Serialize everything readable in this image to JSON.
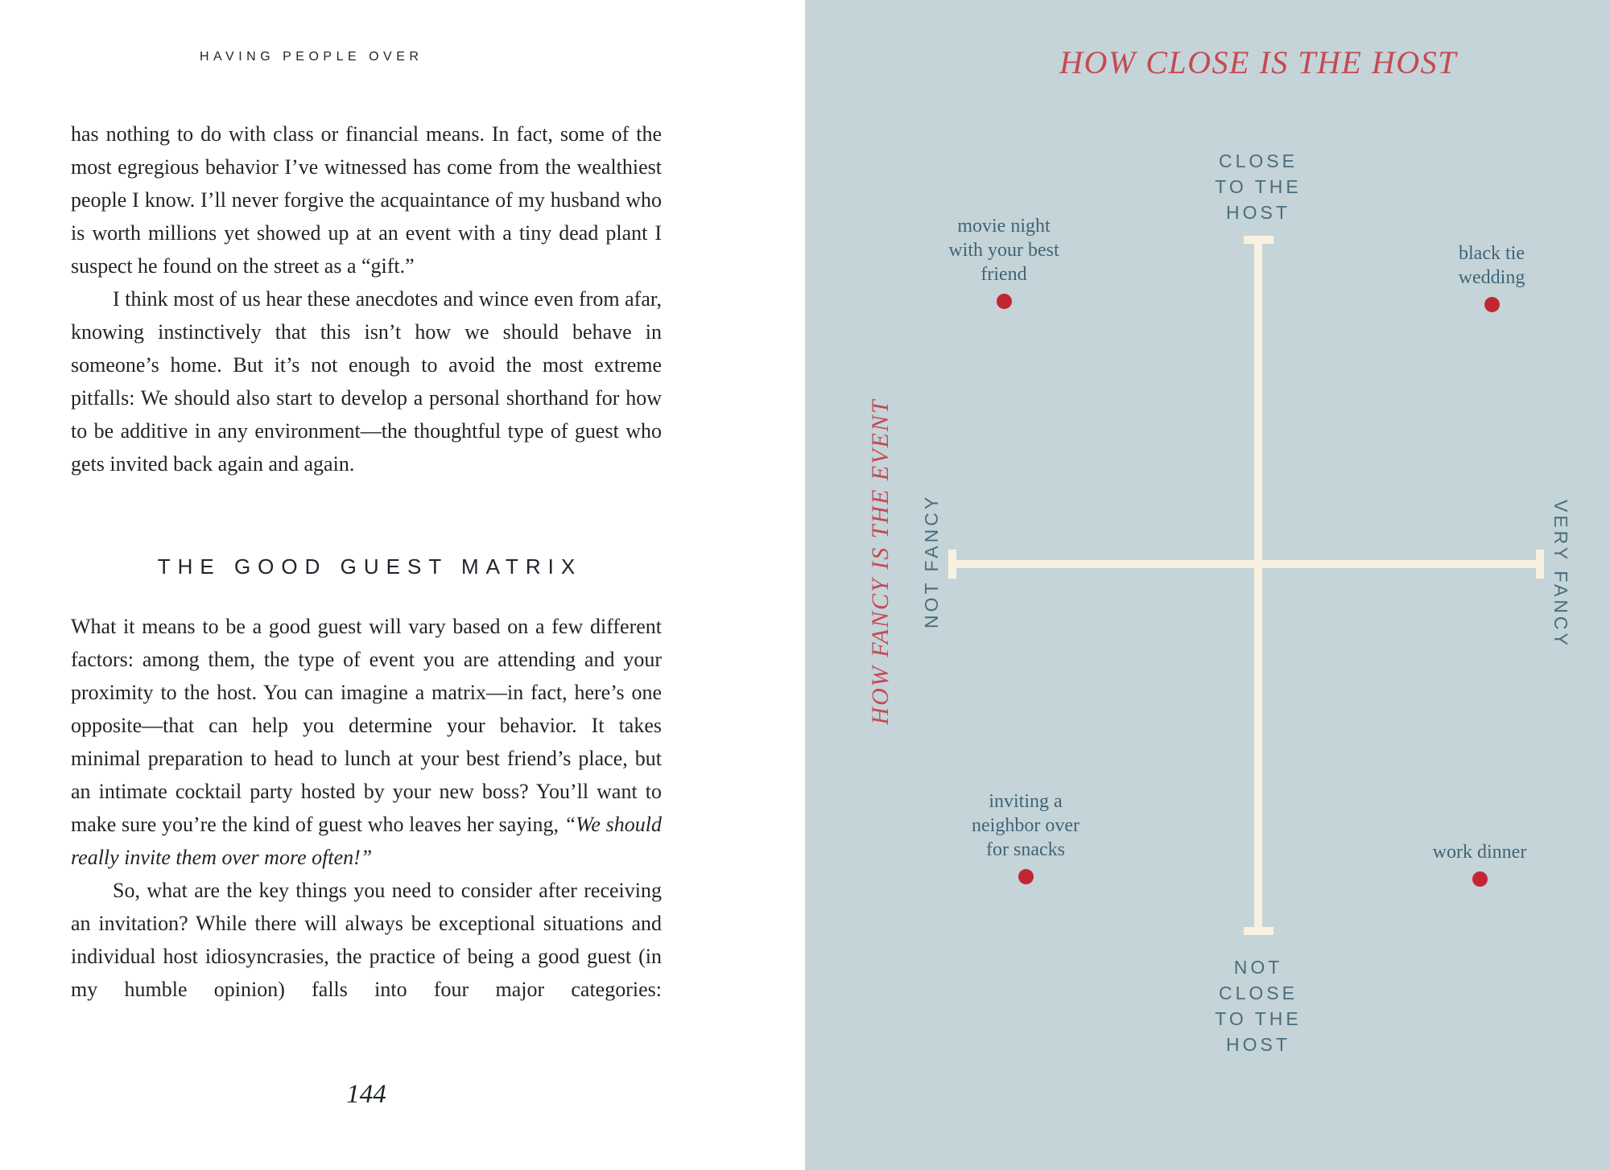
{
  "colors": {
    "left_page_background": "#ffffff",
    "chart_background": "#c5d4d8",
    "accent_red": "#c44a54",
    "dot_red": "#c22634",
    "slate_blue_sans": "#4a6d7e",
    "slate_blue_serif": "#406478",
    "axis_cream": "#f9f1e0",
    "body_text": "#1f2428"
  },
  "left_page": {
    "running_header": "HAVING PEOPLE OVER",
    "paragraphs": {
      "p1": "has nothing to do with class or financial means. In fact, some of the most egregious behavior I’ve witnessed has come from the wealthiest people I know. I’ll never forgive the acquaintance of my husband who is worth millions yet showed up at an event with a tiny dead plant I suspect he found on the street as a “gift.”",
      "p2": "I think most of us hear these anecdotes and wince even from afar, knowing instinctively that this isn’t how we should behave in someone’s home. But it’s not enough to avoid the most extreme pitfalls: We should also start to develop a personal shorthand for how to be additive in any environment—the thoughtful type of guest who gets invited back again and again.",
      "p3_normal": "What it means to be a good guest will vary based on a few different factors: among them, the type of event you are attending and your proximity to the host. You can imagine a matrix—in fact, here’s one opposite—that can help you determine your behavior. It takes minimal preparation to head to lunch at your best friend’s place, but an intimate cocktail party hosted by your new boss? You’ll want to make sure you’re the kind of guest who leaves her saying, ",
      "p3_italic": "“We should really invite them over more often!”",
      "p4": "So, what are the key things you need to consider after receiving an invitation? While there will always be exceptional situations and individual host idiosyncrasies, the practice of being a good guest (in my humble opinion) falls into four major categories:"
    },
    "section_heading": "THE GOOD GUEST MATRIX",
    "page_number": "144"
  },
  "right_page": {
    "title": "HOW CLOSE IS THE HOST",
    "axis_labels": {
      "top": "CLOSE\nTO THE\nHOST",
      "bottom": "NOT\nCLOSE\nTO THE\nHOST",
      "left": "NOT FANCY",
      "right": "VERY FANCY",
      "x_axis_title": "HOW FANCY IS THE EVENT"
    },
    "points": [
      {
        "label": "movie night\nwith your best\nfriend"
      },
      {
        "label": "black tie\nwedding"
      },
      {
        "label": "inviting a\nneighbor over\nfor snacks"
      },
      {
        "label": "work dinner"
      }
    ]
  },
  "chart_data": {
    "type": "scatter",
    "title": "HOW CLOSE IS THE HOST",
    "x_axis": {
      "label": "HOW FANCY IS THE EVENT",
      "min_label": "NOT FANCY",
      "max_label": "VERY FANCY",
      "range": [
        -1,
        1
      ]
    },
    "y_axis": {
      "label": "HOW CLOSE IS THE HOST",
      "min_label": "NOT CLOSE TO THE HOST",
      "max_label": "CLOSE TO THE HOST",
      "range": [
        -1,
        1
      ]
    },
    "grid": false,
    "legend": false,
    "points": [
      {
        "label": "movie night with your best friend",
        "x": -0.83,
        "y": 0.8,
        "quadrant": "not fancy / close to the host"
      },
      {
        "label": "black tie wedding",
        "x": 0.83,
        "y": 0.8,
        "quadrant": "very fancy / close to the host"
      },
      {
        "label": "inviting a neighbor over for snacks",
        "x": -0.75,
        "y": -0.84,
        "quadrant": "not fancy / not close to the host"
      },
      {
        "label": "work dinner",
        "x": 0.75,
        "y": -0.84,
        "quadrant": "very fancy / not close to the host"
      }
    ]
  }
}
